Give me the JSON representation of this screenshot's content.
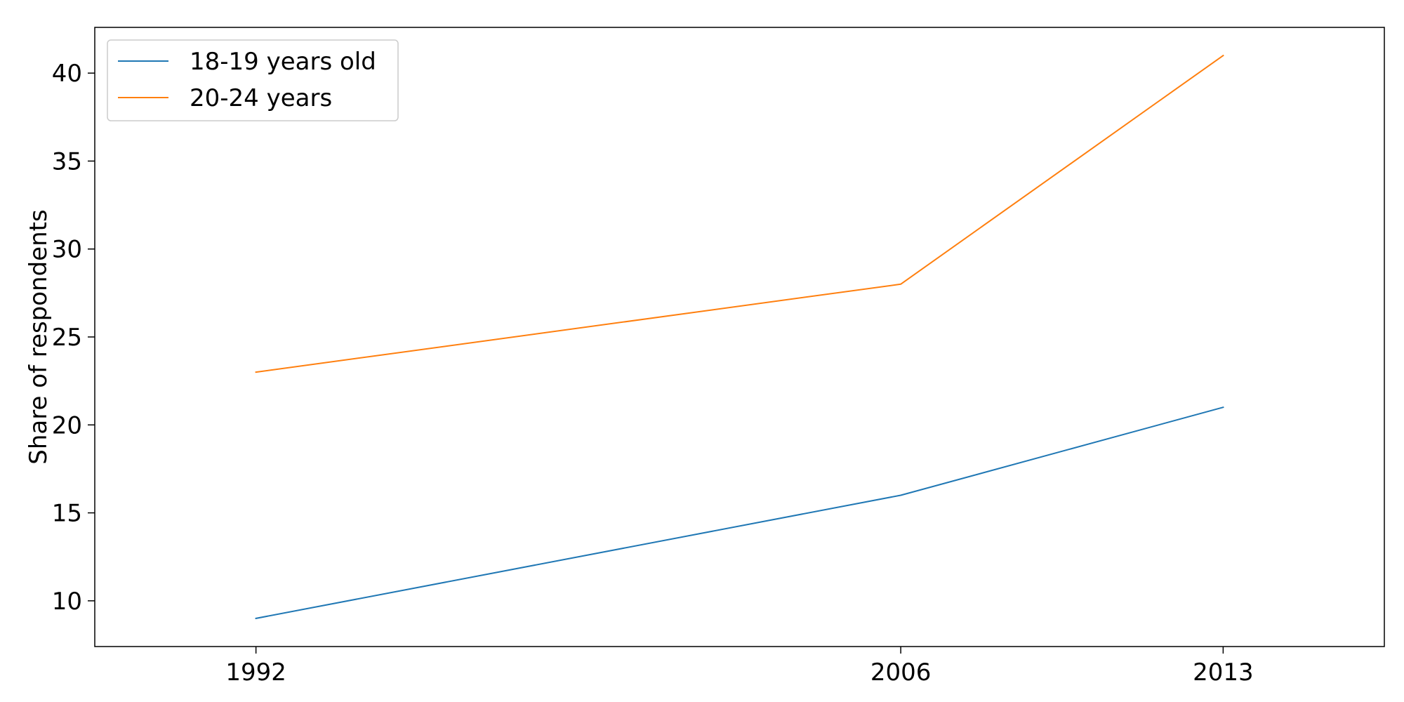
{
  "chart_data": {
    "type": "line",
    "title": "",
    "xlabel": "",
    "ylabel": "Share of respondents",
    "x": [
      1992,
      2006,
      2013
    ],
    "x_tick_labels": [
      "1992",
      "2006",
      "2013"
    ],
    "y_ticks": [
      10,
      15,
      20,
      25,
      30,
      35,
      40
    ],
    "y_tick_labels": [
      "10",
      "15",
      "20",
      "25",
      "30",
      "35",
      "40"
    ],
    "xlim": [
      1988.5,
      2016.5
    ],
    "ylim": [
      7.4,
      42.6
    ],
    "grid": false,
    "legend_position": "top-left",
    "series": [
      {
        "name": "18-19 years old",
        "color": "#1f77b4",
        "values": [
          9,
          16,
          21
        ]
      },
      {
        "name": "20-24 years",
        "color": "#ff7f0e",
        "values": [
          23,
          28,
          41
        ]
      }
    ]
  }
}
